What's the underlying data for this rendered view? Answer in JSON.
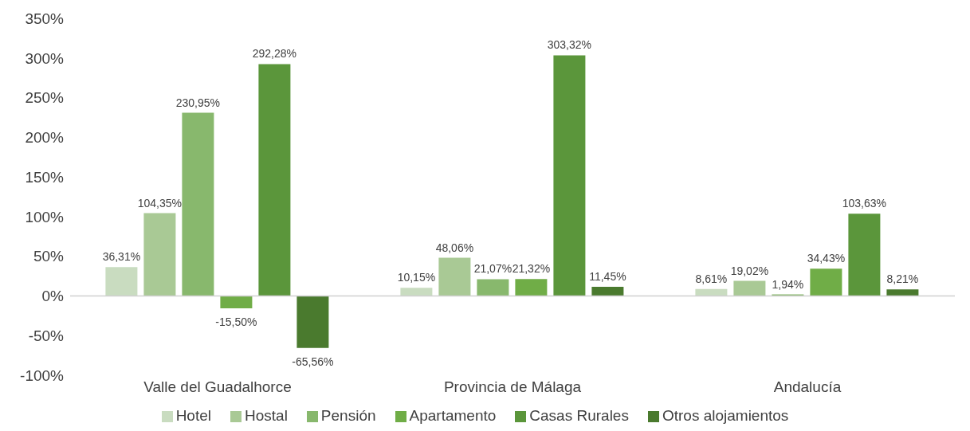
{
  "chart_data": {
    "type": "bar",
    "categories": [
      "Valle del Guadalhorce",
      "Provincia de Málaga",
      "Andalucía"
    ],
    "series": [
      {
        "name": "Hotel",
        "color": "#c9dcc0",
        "values": [
          36.31,
          10.15,
          8.61
        ],
        "value_labels": [
          "36,31%",
          "10,15%",
          "8,61%"
        ]
      },
      {
        "name": "Hostal",
        "color": "#a9c995",
        "values": [
          104.35,
          48.06,
          19.02
        ],
        "value_labels": [
          "104,35%",
          "48,06%",
          "19,02%"
        ]
      },
      {
        "name": "Pensión",
        "color": "#88b86d",
        "values": [
          230.95,
          21.07,
          1.94
        ],
        "value_labels": [
          "230,95%",
          "21,07%",
          "1,94%"
        ]
      },
      {
        "name": "Apartamento",
        "color": "#70ad47",
        "values": [
          -15.5,
          21.32,
          34.43
        ],
        "value_labels": [
          "-15,50%",
          "21,32%",
          "34,43%"
        ]
      },
      {
        "name": "Casas Rurales",
        "color": "#5b963b",
        "values": [
          292.28,
          303.32,
          103.63
        ],
        "value_labels": [
          "292,28%",
          "303,32%",
          "103,63%"
        ]
      },
      {
        "name": "Otros alojamientos",
        "color": "#4a7a2e",
        "values": [
          -65.56,
          11.45,
          8.21
        ],
        "value_labels": [
          "-65,56%",
          "11,45%",
          "8,21%"
        ]
      }
    ],
    "ylim": [
      -100,
      350
    ],
    "yticks": [
      {
        "value": -100,
        "label": "-100%"
      },
      {
        "value": -50,
        "label": "-50%"
      },
      {
        "value": 0,
        "label": "0%"
      },
      {
        "value": 50,
        "label": "50%"
      },
      {
        "value": 100,
        "label": "100%"
      },
      {
        "value": 150,
        "label": "150%"
      },
      {
        "value": 200,
        "label": "200%"
      },
      {
        "value": 250,
        "label": "250%"
      },
      {
        "value": 300,
        "label": "300%"
      },
      {
        "value": 350,
        "label": "350%"
      }
    ],
    "ref_lines": [
      {
        "axis": "y",
        "value": 0,
        "color": "#d0d0d0"
      }
    ],
    "grid": false,
    "legend": "bottom"
  }
}
